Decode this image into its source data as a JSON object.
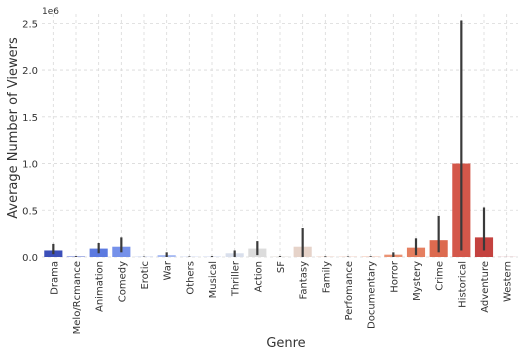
{
  "chart_data": {
    "type": "bar",
    "title": "",
    "xlabel": "Genre",
    "ylabel": "Average Number of Viewers",
    "y_scale_label": "1e6",
    "y_scale_factor": 1000000,
    "ylim": [
      0,
      2.6
    ],
    "y_ticks": [
      0.0,
      0.5,
      1.0,
      1.5,
      2.0,
      2.5
    ],
    "y_tick_labels": [
      "0.0",
      "0.5",
      "1.0",
      "1.5",
      "2.0",
      "2.5"
    ],
    "grid": true,
    "legend": "none",
    "categories": [
      "Drama",
      "Melo/Rcmance",
      "Animation",
      "Comedy",
      "Erotic",
      "War",
      "Others",
      "Musical",
      "Thriller",
      "Action",
      "SF",
      "Fantasy",
      "Family",
      "Perfomance",
      "Documentary",
      "Horror",
      "Mystery",
      "Crime",
      "Historical",
      "Adventure",
      "Western"
    ],
    "values": [
      0.07,
      0.005,
      0.09,
      0.11,
      0.002,
      0.02,
      0.003,
      0.005,
      0.04,
      0.09,
      0.005,
      0.11,
      0.004,
      0.003,
      0.004,
      0.025,
      0.1,
      0.18,
      1.0,
      0.21,
      0.001
    ],
    "error_low": [
      0.03,
      0.0,
      0.04,
      0.05,
      0.0,
      0.0,
      0.0,
      0.0,
      0.0,
      0.02,
      0.0,
      0.0,
      0.0,
      0.0,
      0.0,
      0.0,
      0.02,
      0.05,
      0.07,
      0.07,
      0.0
    ],
    "error_high": [
      0.14,
      0.01,
      0.15,
      0.21,
      0.005,
      0.05,
      0.006,
      0.01,
      0.07,
      0.17,
      0.01,
      0.31,
      0.008,
      0.006,
      0.008,
      0.05,
      0.2,
      0.44,
      2.53,
      0.53,
      0.002
    ],
    "colors": [
      "#3c4fb9",
      "#4a61cc",
      "#5c7ae0",
      "#7591ea",
      "#8ea6f0",
      "#a7baf2",
      "#bccbf3",
      "#cdd7f1",
      "#d9dfec",
      "#dcdcdc",
      "#e2dcd7",
      "#e6d3c9",
      "#ebc6b5",
      "#eeb7a0",
      "#efa68a",
      "#eb9374",
      "#e57f60",
      "#dc6a4f",
      "#d4574a",
      "#c4423f",
      "#b8263a"
    ]
  }
}
